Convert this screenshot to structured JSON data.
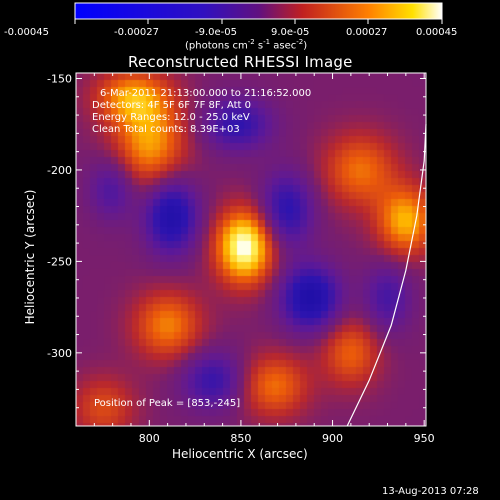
{
  "colors": {
    "background": "#000000",
    "foreground": "#ffffff",
    "colormap": [
      "#2a1aa8",
      "#5a1e9e",
      "#8a2a8c",
      "#c03a3a",
      "#ff6a00",
      "#ffd000",
      "#ffffc0"
    ]
  },
  "colorbar": {
    "tick_labels": [
      "-0.00045",
      "-0.00027",
      "-9.0e-05",
      "9.0e-05",
      "0.00027",
      "0.00045"
    ],
    "units_main": "(photons cm",
    "units_exp1": "-2",
    "units_mid": " s",
    "units_exp2": "-1",
    "units_tail": " asec",
    "units_exp3": "-2",
    "units_close": ")"
  },
  "chart_data": {
    "type": "heatmap",
    "title": "Reconstructed RHESSI Image",
    "xlabel": "Heliocentric X (arcsec)",
    "ylabel": "Heliocentric Y (arcsec)",
    "xlim": [
      760,
      951
    ],
    "ylim": [
      -340,
      -147
    ],
    "x_ticks": [
      800,
      850,
      900,
      950
    ],
    "y_ticks": [
      -150,
      -200,
      -250,
      -300
    ],
    "x_tick_labels": [
      "800",
      "850",
      "900",
      "950"
    ],
    "y_tick_labels": [
      "-150",
      "-200",
      "-250",
      "-300"
    ],
    "value_range": [
      -0.00045,
      0.00045
    ],
    "peak_position": [
      853,
      -245
    ],
    "blobs": [
      {
        "x": 852,
        "y": -242,
        "sx": 11,
        "sy": 14,
        "amp": 0.00045
      },
      {
        "x": 800,
        "y": -185,
        "sx": 14,
        "sy": 18,
        "amp": 0.00028
      },
      {
        "x": 790,
        "y": -160,
        "sx": 14,
        "sy": 10,
        "amp": 0.00024
      },
      {
        "x": 940,
        "y": -228,
        "sx": 11,
        "sy": 13,
        "amp": 0.0003
      },
      {
        "x": 915,
        "y": -200,
        "sx": 14,
        "sy": 14,
        "amp": 0.00022
      },
      {
        "x": 810,
        "y": -285,
        "sx": 13,
        "sy": 13,
        "amp": 0.00024
      },
      {
        "x": 868,
        "y": -318,
        "sx": 13,
        "sy": 12,
        "amp": 0.00022
      },
      {
        "x": 910,
        "y": -300,
        "sx": 11,
        "sy": 13,
        "amp": 0.0002
      },
      {
        "x": 775,
        "y": -330,
        "sx": 12,
        "sy": 12,
        "amp": 0.00016
      },
      {
        "x": 812,
        "y": -225,
        "sx": 10,
        "sy": 14,
        "amp": -0.00034
      },
      {
        "x": 888,
        "y": -270,
        "sx": 11,
        "sy": 12,
        "amp": -0.00036
      },
      {
        "x": 848,
        "y": -175,
        "sx": 13,
        "sy": 10,
        "amp": -0.00024
      },
      {
        "x": 875,
        "y": -222,
        "sx": 10,
        "sy": 14,
        "amp": -0.00026
      },
      {
        "x": 780,
        "y": -210,
        "sx": 9,
        "sy": 12,
        "amp": -0.00018
      },
      {
        "x": 835,
        "y": -315,
        "sx": 12,
        "sy": 11,
        "amp": -0.00022
      },
      {
        "x": 930,
        "y": -270,
        "sx": 9,
        "sy": 13,
        "amp": -0.00018
      }
    ],
    "limb_curve": [
      [
        908,
        -340
      ],
      [
        920,
        -315
      ],
      [
        932,
        -285
      ],
      [
        940,
        -255
      ],
      [
        946,
        -225
      ],
      [
        950,
        -195
      ],
      [
        951,
        -175
      ]
    ]
  },
  "info": {
    "line1": "6-Mar-2011 21:13:00.000 to 21:16:52.000",
    "line2": "Detectors: 4F 5F 6F 7F 8F, Att 0",
    "line3": "Energy Ranges: 12.0 - 25.0 keV",
    "line4": "Clean    Total counts: 8.39E+03",
    "peak": "Position of Peak = [853,-245]"
  },
  "footer": {
    "timestamp": "13-Aug-2013 07:28"
  }
}
